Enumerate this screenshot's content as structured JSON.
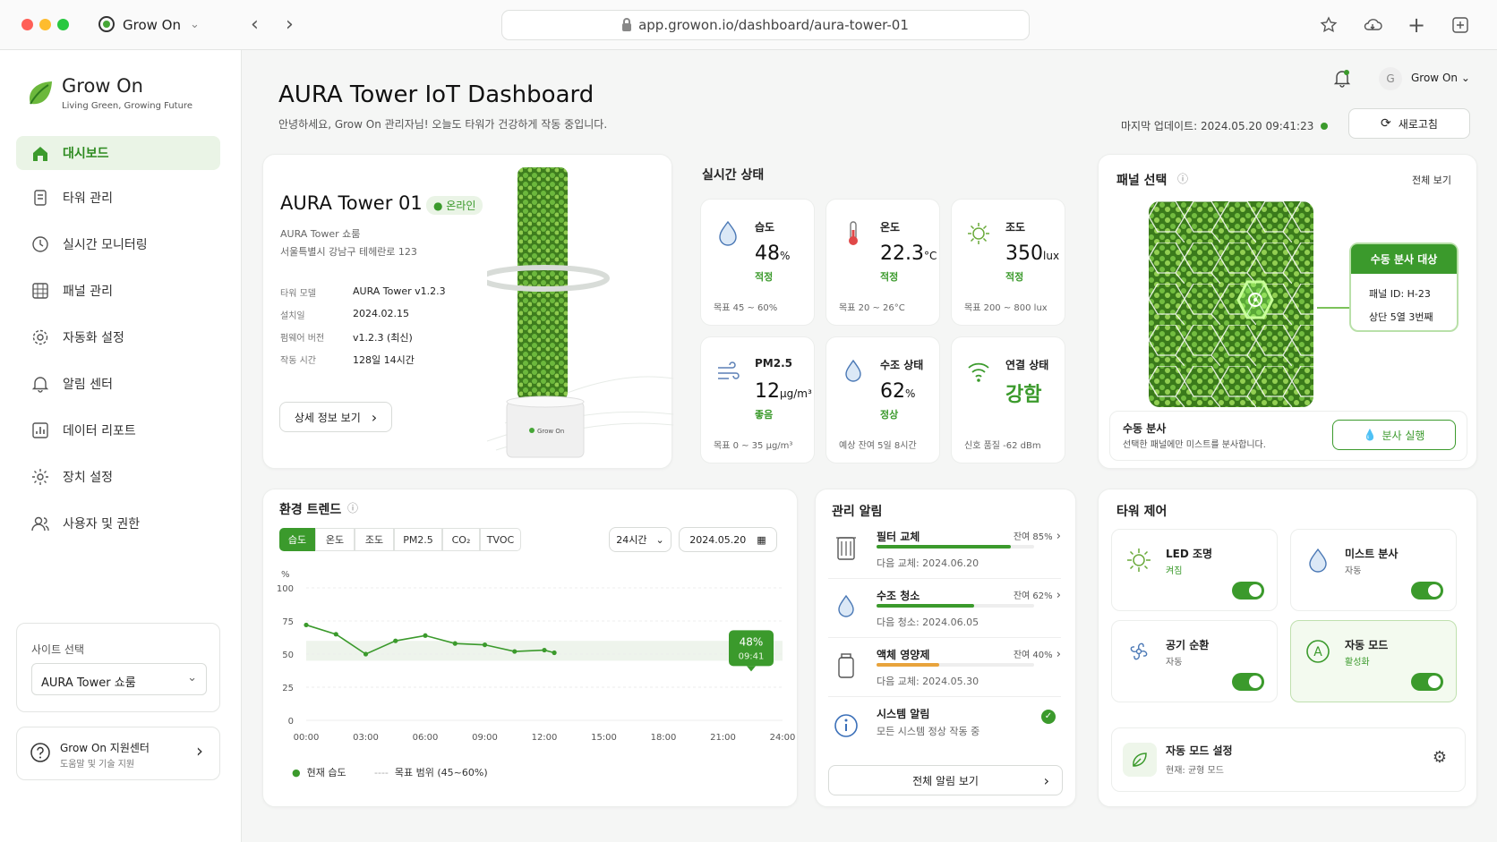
{
  "browser": {
    "tab_title": "Grow On",
    "url": "app.growon.io/dashboard/aura-tower-01"
  },
  "sidebar": {
    "brand": "Grow On",
    "tagline": "Living Green, Growing Future",
    "items": [
      {
        "label": "대시보드",
        "icon": "home-icon"
      },
      {
        "label": "타워 관리",
        "icon": "tower-icon"
      },
      {
        "label": "실시간 모니터링",
        "icon": "clock-icon"
      },
      {
        "label": "패널 관리",
        "icon": "panel-icon"
      },
      {
        "label": "자동화 설정",
        "icon": "gear-icon"
      },
      {
        "label": "알림 센터",
        "icon": "bell-icon"
      },
      {
        "label": "데이터 리포트",
        "icon": "report-icon"
      },
      {
        "label": "장치 설정",
        "icon": "settings-icon"
      },
      {
        "label": "사용자 및 권한",
        "icon": "users-icon"
      }
    ],
    "site_label": "사이트 선택",
    "site_value": "AURA Tower 쇼룸",
    "support_title": "Grow On 지원센터",
    "support_sub": "도움말 및 기술 지원"
  },
  "header": {
    "title": "AURA Tower IoT Dashboard",
    "subtitle": "안녕하세요, Grow On 관리자님! 오늘도 타워가 건강하게 작동 중입니다.",
    "last_update": "마지막 업데이트: 2024.05.20 09:41:23",
    "refresh": "새로고침",
    "user": "Grow On",
    "avatar": "G"
  },
  "tower": {
    "name": "AURA Tower 01",
    "status": "온라인",
    "location": "AURA Tower 쇼룸",
    "address": "서울특별시 강남구 테헤란로 123",
    "specs": [
      {
        "k": "타워 모델",
        "v": "AURA Tower v1.2.3"
      },
      {
        "k": "설치일",
        "v": "2024.02.15"
      },
      {
        "k": "펌웨어 버전",
        "v": "v1.2.3 (최신)"
      },
      {
        "k": "작동 시간",
        "v": "128일 14시간"
      }
    ],
    "detail_btn": "상세 정보 보기",
    "base_brand": "Grow On"
  },
  "realtime": {
    "title": "실시간 상태",
    "metrics": [
      {
        "label": "습도",
        "value": "48",
        "unit": "%",
        "status": "적정",
        "target": "목표 45 ~ 60%"
      },
      {
        "label": "온도",
        "value": "22.3",
        "unit": "°C",
        "status": "적정",
        "target": "목표 20 ~ 26°C"
      },
      {
        "label": "조도",
        "value": "350",
        "unit": "lux",
        "status": "적정",
        "target": "목표 200 ~ 800 lux"
      },
      {
        "label": "PM2.5",
        "value": "12",
        "unit": "μg/m³",
        "status": "좋음",
        "target": "목표 0 ~ 35 μg/m³"
      },
      {
        "label": "수조 상태",
        "value": "62",
        "unit": "%",
        "status": "정상",
        "target": "예상 잔여 5일 8시간"
      },
      {
        "label": "연결 상태",
        "value": "강함",
        "unit": "",
        "status": "",
        "target": "신호 품질 -62 dBm"
      }
    ]
  },
  "panel": {
    "title": "패널 선택",
    "view_all": "전체 보기",
    "callout_title": "수동 분사 대상",
    "panel_id": "패널 ID: H-23",
    "position": "상단 5열 3번째",
    "manual_title": "수동 분사",
    "manual_sub": "선택한 패널에만 미스트를 분사합니다.",
    "spray_btn": "분사 실행"
  },
  "trend": {
    "title": "환경 트렌드",
    "tabs": [
      "습도",
      "온도",
      "조도",
      "PM2.5",
      "CO₂",
      "TVOC"
    ],
    "range": "24시간",
    "date": "2024.05.20",
    "unit": "%",
    "tooltip_value": "48%",
    "tooltip_time": "09:41",
    "legend_current": "현재 습도",
    "legend_target": "목표 범위 (45~60%)"
  },
  "chart_data": {
    "type": "line",
    "x": [
      "00:00",
      "01:30",
      "03:00",
      "04:30",
      "06:00",
      "07:30",
      "09:00",
      "10:30",
      "12:00",
      "12:30"
    ],
    "series": [
      {
        "name": "현재 습도",
        "values": [
          72,
          65,
          50,
          60,
          64,
          58,
          57,
          52,
          53,
          51
        ]
      }
    ],
    "ylim": [
      0,
      100
    ],
    "yticks": [
      0,
      25,
      50,
      75,
      100
    ],
    "xticks": [
      "00:00",
      "03:00",
      "06:00",
      "09:00",
      "12:00",
      "15:00",
      "18:00",
      "21:00",
      "24:00"
    ],
    "target_band": [
      45,
      60
    ],
    "ylabel": "%"
  },
  "alerts": {
    "title": "관리 알림",
    "items": [
      {
        "h": "필터 교체",
        "r": "잔여 85%",
        "pct": 85,
        "s": "다음 교체: 2024.06.20",
        "color": "#3b9a2c"
      },
      {
        "h": "수조 청소",
        "r": "잔여 62%",
        "pct": 62,
        "s": "다음 청소: 2024.06.05",
        "color": "#3b9a2c"
      },
      {
        "h": "액체 영양제",
        "r": "잔여 40%",
        "pct": 40,
        "s": "다음 교체: 2024.05.30",
        "color": "#e8a33c"
      },
      {
        "h": "시스템 알림",
        "r": "",
        "pct": 0,
        "s": "모든 시스템 정상 작동 중",
        "color": ""
      }
    ],
    "view_all": "전체 알림 보기"
  },
  "control": {
    "title": "타워 제어",
    "items": [
      {
        "h": "LED 조명",
        "s": "켜짐"
      },
      {
        "h": "미스트 분사",
        "s": "자동"
      },
      {
        "h": "공기 순환",
        "s": "자동"
      },
      {
        "h": "자동 모드",
        "s": "활성화"
      }
    ],
    "mode_title": "자동 모드 설정",
    "mode_sub": "현재: 균형 모드"
  },
  "colors": {
    "accent": "#3b9a2c",
    "accent_light": "#eaf4e6",
    "warn": "#e8a33c"
  }
}
